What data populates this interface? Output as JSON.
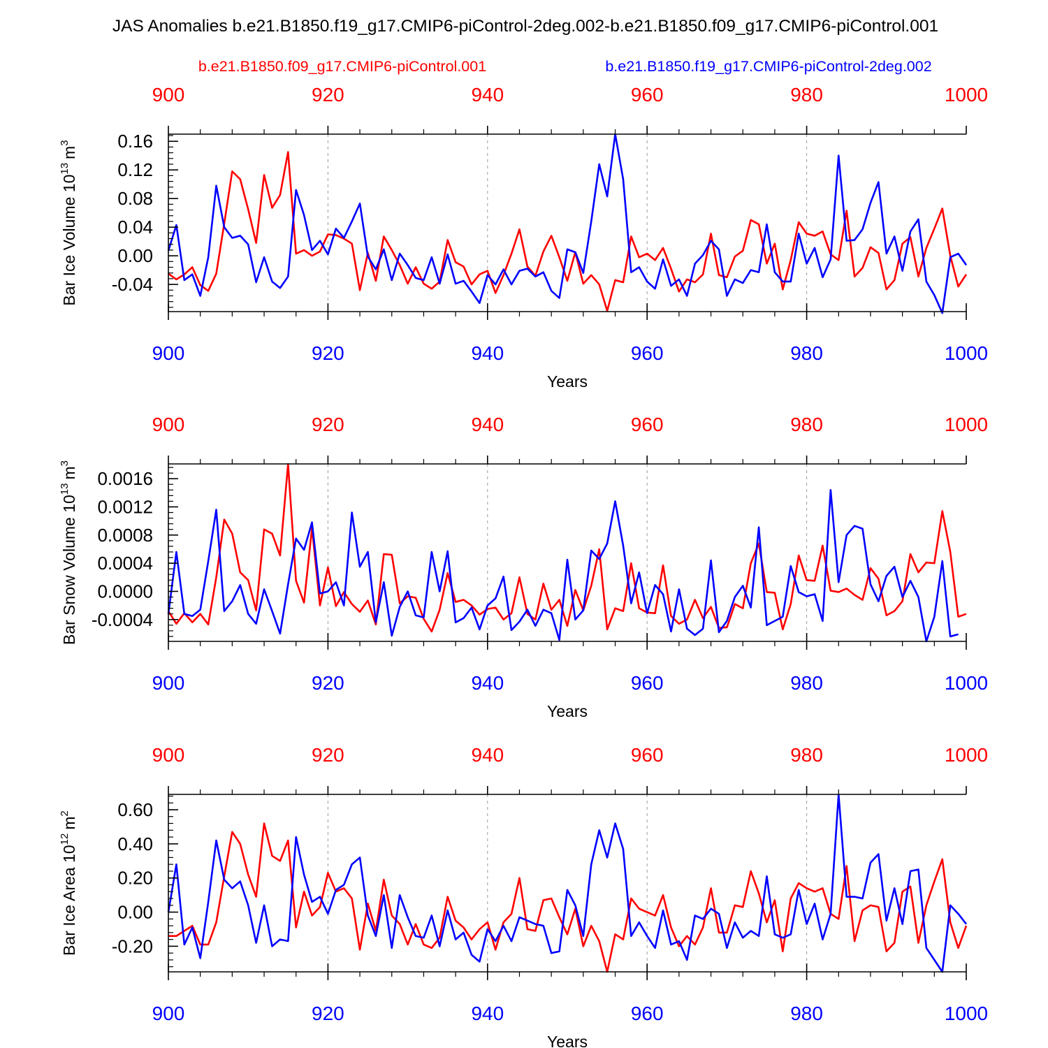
{
  "title": "JAS Anomalies b.e21.B1850.f19_g17.CMIP6-piControl-2deg.002-b.e21.B1850.f09_g17.CMIP6-piControl.001",
  "legend": {
    "red_label": "b.e21.B1850.f09_g17.CMIP6-piControl.001",
    "blue_label": "b.e21.B1850.f19_g17.CMIP6-piControl-2deg.002"
  },
  "colors": {
    "red": "#ff0000",
    "blue": "#0000ff",
    "axis": "#000000",
    "grid": "#999999"
  },
  "chart_data": [
    {
      "type": "line",
      "ylabel_main": "Bar Ice Volume 10",
      "ylabel_exp": "13",
      "ylabel_unit": "m",
      "ylabel_unit_exp": "3",
      "xlabel": "Years",
      "xlim": [
        900,
        1000
      ],
      "ylim": [
        -0.078,
        0.17
      ],
      "y_major_ticks": [
        -0.04,
        0.0,
        0.04,
        0.08,
        0.12,
        0.16
      ],
      "y_tick_labels": [
        "-0.04",
        "0.00",
        "0.04",
        "0.08",
        "0.12",
        "0.16"
      ],
      "y_minor_step": 0.008,
      "x_ticks": [
        900,
        920,
        940,
        960,
        980,
        1000
      ],
      "x_tick_labels_red": [
        "900",
        "920",
        "940",
        "960",
        "980",
        "1000"
      ],
      "x_tick_labels_blue": [
        "900",
        "920",
        "940",
        "960",
        "980",
        "1000"
      ],
      "series": [
        {
          "name": "b.e21.B1850.f09_g17.CMIP6-piControl.001",
          "color": "red",
          "x_start": 900,
          "values": [
            -0.025,
            -0.033,
            -0.026,
            -0.016,
            -0.041,
            -0.049,
            -0.025,
            0.045,
            0.118,
            0.107,
            0.065,
            0.018,
            0.113,
            0.067,
            0.085,
            0.145,
            0.003,
            0.008,
            0.0,
            0.006,
            0.03,
            0.029,
            0.024,
            0.017,
            -0.048,
            0.004,
            -0.035,
            0.027,
            0.008,
            -0.013,
            -0.039,
            -0.016,
            -0.039,
            -0.046,
            -0.036,
            0.022,
            -0.009,
            -0.015,
            -0.04,
            -0.026,
            -0.021,
            -0.052,
            -0.027,
            0.003,
            0.037,
            -0.015,
            -0.028,
            0.006,
            0.028,
            -0.002,
            -0.035,
            0.005,
            -0.039,
            -0.027,
            -0.04,
            -0.077,
            -0.034,
            -0.037,
            0.027,
            -0.002,
            0.003,
            -0.006,
            0.011,
            -0.018,
            -0.05,
            -0.033,
            -0.037,
            -0.026,
            0.031,
            -0.027,
            -0.03,
            -0.001,
            0.007,
            0.05,
            0.044,
            -0.011,
            0.017,
            -0.047,
            -0.006,
            0.047,
            0.031,
            0.028,
            0.034,
            0.002,
            -0.006,
            0.063,
            -0.029,
            -0.017,
            0.012,
            0.004,
            -0.047,
            -0.034,
            0.017,
            0.026,
            -0.029,
            0.011,
            0.038,
            0.066,
            0.0,
            -0.043,
            -0.026
          ]
        },
        {
          "name": "b.e21.B1850.f19_g17.CMIP6-piControl-2deg.002",
          "color": "blue",
          "x_start": 900,
          "values": [
            0.007,
            0.043,
            -0.034,
            -0.026,
            -0.056,
            -0.002,
            0.098,
            0.04,
            0.025,
            0.028,
            0.016,
            -0.037,
            -0.002,
            -0.036,
            -0.045,
            -0.029,
            0.092,
            0.057,
            0.008,
            0.021,
            0.002,
            0.038,
            0.025,
            0.048,
            0.073,
            -0.001,
            -0.019,
            0.009,
            -0.034,
            0.003,
            -0.013,
            -0.031,
            -0.034,
            -0.002,
            -0.039,
            0.002,
            -0.039,
            -0.035,
            -0.05,
            -0.066,
            -0.027,
            -0.04,
            -0.019,
            -0.04,
            -0.021,
            -0.018,
            -0.029,
            -0.023,
            -0.049,
            -0.059,
            0.009,
            0.005,
            -0.024,
            0.048,
            0.128,
            0.083,
            0.17,
            0.107,
            -0.023,
            -0.016,
            -0.036,
            -0.046,
            -0.005,
            -0.042,
            -0.033,
            -0.056,
            -0.011,
            0.001,
            0.021,
            0.009,
            -0.056,
            -0.033,
            -0.038,
            -0.02,
            -0.023,
            0.044,
            -0.023,
            -0.036,
            -0.036,
            0.031,
            -0.011,
            0.011,
            -0.03,
            -0.005,
            0.14,
            0.021,
            0.022,
            0.037,
            0.074,
            0.103,
            0.003,
            0.027,
            -0.021,
            0.034,
            0.051,
            -0.036,
            -0.055,
            -0.08,
            -0.002,
            0.003,
            -0.013
          ]
        }
      ]
    },
    {
      "type": "line",
      "ylabel_main": "Bar Snow Volume 10",
      "ylabel_exp": "13",
      "ylabel_unit": "m",
      "ylabel_unit_exp": "3",
      "xlabel": "Years",
      "xlim": [
        900,
        1000
      ],
      "ylim": [
        -0.00071,
        0.00181
      ],
      "y_major_ticks": [
        -0.0004,
        0.0,
        0.0004,
        0.0008,
        0.0012,
        0.0016
      ],
      "y_tick_labels": [
        "-0.0004",
        "0.0000",
        "0.0004",
        "0.0008",
        "0.0012",
        "0.0016"
      ],
      "y_minor_step": 8e-05,
      "x_ticks": [
        900,
        920,
        940,
        960,
        980,
        1000
      ],
      "x_tick_labels_red": [
        "900",
        "920",
        "940",
        "960",
        "980",
        "1000"
      ],
      "x_tick_labels_blue": [
        "900",
        "920",
        "940",
        "960",
        "980",
        "1000"
      ],
      "series": [
        {
          "name": "b.e21.B1850.f09_g17.CMIP6-piControl.001",
          "color": "red",
          "x_start": 900,
          "values": [
            -0.00028,
            -0.00046,
            -0.00031,
            -0.00044,
            -0.00032,
            -0.00047,
            0.0002,
            0.00102,
            0.00082,
            0.00027,
            0.00016,
            -0.00027,
            0.00088,
            0.00082,
            0.00051,
            0.00181,
            0.00015,
            -0.00016,
            0.0009,
            -0.0002,
            0.00034,
            -0.00021,
            -1e-05,
            -0.00018,
            -0.00029,
            -0.00013,
            -0.00047,
            0.00053,
            0.00052,
            -0.00017,
            -7e-05,
            -9e-05,
            -0.00039,
            -0.00057,
            -0.00026,
            0.00026,
            -0.00015,
            -0.00012,
            -0.0002,
            -0.00033,
            -0.00025,
            -0.00023,
            -0.0004,
            -0.00031,
            0.0002,
            -0.00032,
            -0.0004,
            0.00011,
            -0.00026,
            -0.00012,
            -0.00049,
            2e-05,
            -0.00027,
            8e-05,
            0.0006,
            -0.00054,
            -0.00024,
            -0.00028,
            0.0004,
            -0.00024,
            -0.0003,
            -0.00031,
            0.00037,
            -0.00035,
            -0.00046,
            -0.0004,
            -0.00012,
            -0.00038,
            -0.00022,
            -0.00052,
            -0.00051,
            -0.00018,
            -0.00024,
            0.0004,
            0.00068,
            -1e-05,
            -2e-05,
            -0.00054,
            -0.00018,
            0.00051,
            0.00016,
            0.00015,
            0.00065,
            1e-05,
            -1e-05,
            4e-05,
            -5e-05,
            -0.00012,
            0.00033,
            0.00018,
            -0.00034,
            -0.00028,
            -0.00014,
            0.00053,
            0.00027,
            0.00041,
            0.0004,
            0.00114,
            0.00056,
            -0.00036,
            -0.00032
          ]
        },
        {
          "name": "b.e21.B1850.f19_g17.CMIP6-piControl-2deg.002",
          "color": "blue",
          "x_start": 900,
          "values": [
            -0.00032,
            0.00056,
            -0.00032,
            -0.00035,
            -0.00026,
            0.00043,
            0.00116,
            -0.00028,
            -0.00014,
            9e-05,
            -0.00032,
            -0.00046,
            3e-05,
            -0.00028,
            -0.0006,
            0.0001,
            0.00075,
            0.00059,
            0.00098,
            -3e-05,
            0.0,
            0.00013,
            -0.0002,
            0.00112,
            0.00035,
            0.00056,
            -0.00044,
            0.00013,
            -0.00063,
            -0.00022,
            0.0,
            -0.00034,
            -0.00037,
            0.00056,
            0.0,
            0.00057,
            -0.00044,
            -0.00038,
            -0.00023,
            -0.00054,
            -0.0002,
            -0.0001,
            0.00021,
            -0.00055,
            -0.00043,
            -0.00026,
            -0.00049,
            -0.00026,
            -0.00031,
            -0.00069,
            0.00045,
            -0.0004,
            -0.00027,
            0.00058,
            0.00046,
            0.00068,
            0.00128,
            0.00065,
            -0.00017,
            0.00027,
            -0.00031,
            9e-05,
            -4e-05,
            -0.00057,
            3e-05,
            -0.00053,
            -0.00062,
            -0.00053,
            0.00044,
            -0.00058,
            -0.00042,
            -8e-05,
            8e-05,
            -0.00023,
            0.00091,
            -0.00048,
            -0.00042,
            -0.00036,
            0.00036,
            -1e-05,
            -7e-05,
            -4e-05,
            -0.00042,
            0.00144,
            0.00013,
            0.0008,
            0.00093,
            0.00089,
            0.0001,
            -0.00014,
            0.00022,
            0.00035,
            -8e-05,
            0.00015,
            -8e-05,
            -0.00071,
            -0.00036,
            0.00043,
            -0.00064,
            -0.00061
          ]
        }
      ]
    },
    {
      "type": "line",
      "ylabel_main": "Bar Ice Area 10",
      "ylabel_exp": "12",
      "ylabel_unit": "m",
      "ylabel_unit_exp": "2",
      "xlabel": "Years",
      "xlim": [
        900,
        1000
      ],
      "ylim": [
        -0.35,
        0.69
      ],
      "y_major_ticks": [
        -0.2,
        0.0,
        0.2,
        0.4,
        0.6
      ],
      "y_tick_labels": [
        "-0.20",
        "0.00",
        "0.20",
        "0.40",
        "0.60"
      ],
      "y_minor_step": 0.04,
      "x_ticks": [
        900,
        920,
        940,
        960,
        980,
        1000
      ],
      "x_tick_labels_red": [
        "900",
        "920",
        "940",
        "960",
        "980",
        "1000"
      ],
      "x_tick_labels_blue": [
        "900",
        "920",
        "940",
        "960",
        "980",
        "1000"
      ],
      "series": [
        {
          "name": "b.e21.B1850.f09_g17.CMIP6-piControl.001",
          "color": "red",
          "x_start": 900,
          "values": [
            -0.14,
            -0.14,
            -0.11,
            -0.08,
            -0.19,
            -0.19,
            -0.06,
            0.21,
            0.47,
            0.4,
            0.22,
            0.09,
            0.52,
            0.33,
            0.3,
            0.42,
            -0.09,
            0.12,
            -0.02,
            0.03,
            0.23,
            0.12,
            0.14,
            0.08,
            -0.22,
            0.05,
            -0.11,
            0.19,
            -0.02,
            -0.07,
            -0.19,
            -0.07,
            -0.19,
            -0.21,
            -0.15,
            0.09,
            -0.05,
            -0.09,
            -0.16,
            -0.1,
            -0.06,
            -0.22,
            -0.06,
            -0.01,
            0.2,
            -0.1,
            -0.11,
            0.07,
            0.08,
            -0.03,
            -0.13,
            0.02,
            -0.2,
            -0.08,
            -0.17,
            -0.35,
            -0.13,
            -0.16,
            0.08,
            0.02,
            0.0,
            -0.02,
            0.1,
            -0.09,
            -0.2,
            -0.14,
            -0.19,
            -0.09,
            0.14,
            -0.12,
            -0.12,
            0.04,
            0.03,
            0.24,
            0.11,
            -0.06,
            0.07,
            -0.23,
            0.08,
            0.17,
            0.14,
            0.12,
            0.14,
            -0.01,
            -0.04,
            0.27,
            -0.17,
            0.01,
            0.04,
            0.03,
            -0.23,
            -0.18,
            0.12,
            0.15,
            -0.18,
            0.04,
            0.18,
            0.31,
            -0.06,
            -0.21,
            -0.08
          ]
        },
        {
          "name": "b.e21.B1850.f19_g17.CMIP6-piControl-2deg.002",
          "color": "blue",
          "x_start": 900,
          "values": [
            0.0,
            0.28,
            -0.19,
            -0.09,
            -0.27,
            0.06,
            0.42,
            0.19,
            0.14,
            0.18,
            0.04,
            -0.18,
            0.04,
            -0.2,
            -0.16,
            -0.17,
            0.44,
            0.22,
            0.06,
            0.09,
            -0.01,
            0.13,
            0.16,
            0.28,
            0.32,
            -0.02,
            -0.14,
            0.1,
            -0.21,
            0.1,
            -0.03,
            -0.14,
            -0.15,
            -0.02,
            -0.2,
            0.01,
            -0.16,
            -0.12,
            -0.25,
            -0.29,
            -0.1,
            -0.17,
            -0.08,
            -0.17,
            -0.03,
            -0.05,
            -0.07,
            -0.08,
            -0.24,
            -0.23,
            0.13,
            0.04,
            -0.14,
            0.28,
            0.48,
            0.32,
            0.52,
            0.37,
            -0.14,
            -0.06,
            -0.14,
            -0.21,
            0.01,
            -0.19,
            -0.17,
            -0.28,
            -0.02,
            -0.04,
            0.02,
            -0.01,
            -0.21,
            -0.06,
            -0.15,
            -0.11,
            -0.14,
            0.21,
            -0.13,
            -0.15,
            -0.13,
            0.13,
            -0.07,
            0.05,
            -0.16,
            -0.01,
            0.69,
            0.09,
            0.09,
            0.08,
            0.29,
            0.34,
            -0.05,
            0.14,
            -0.07,
            0.24,
            0.25,
            -0.21,
            -0.28,
            -0.35,
            0.04,
            -0.01,
            -0.07
          ]
        }
      ]
    }
  ]
}
